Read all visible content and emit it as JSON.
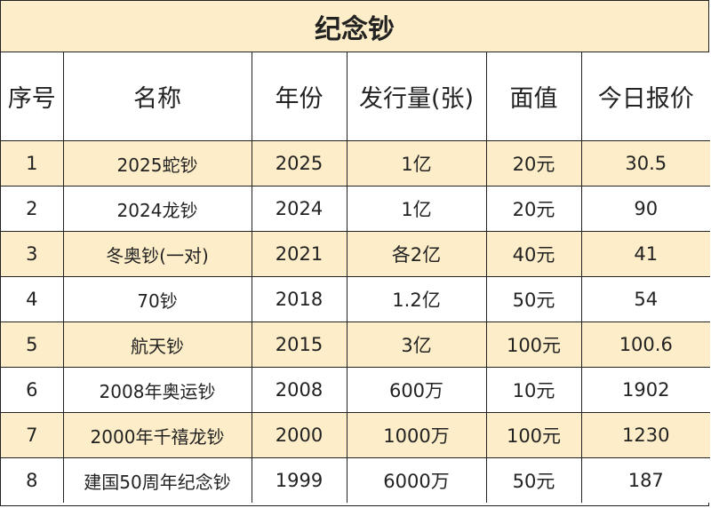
{
  "title": "纪念钞",
  "headers": [
    "序号",
    "名称",
    "年份",
    "发行量(张)",
    "面值",
    "今日报价"
  ],
  "rows": [
    {
      "index": "1",
      "name": "2025蛇钞",
      "year": "2025",
      "quantity": "1亿",
      "face": "20元",
      "price": "30.5"
    },
    {
      "index": "2",
      "name": "2024龙钞",
      "year": "2024",
      "quantity": "1亿",
      "face": "20元",
      "price": "90"
    },
    {
      "index": "3",
      "name": "冬奥钞(一对)",
      "year": "2021",
      "quantity": "各2亿",
      "face": "40元",
      "price": "41"
    },
    {
      "index": "4",
      "name": "70钞",
      "year": "2018",
      "quantity": "1.2亿",
      "face": "50元",
      "price": "54"
    },
    {
      "index": "5",
      "name": "航天钞",
      "year": "2015",
      "quantity": "3亿",
      "face": "100元",
      "price": "100.6"
    },
    {
      "index": "6",
      "name": "2008年奥运钞",
      "year": "2008",
      "quantity": "600万",
      "face": "10元",
      "price": "1902"
    },
    {
      "index": "7",
      "name": "2000年千禧龙钞",
      "year": "2000",
      "quantity": "1000万",
      "face": "100元",
      "price": "1230"
    },
    {
      "index": "8",
      "name": "建国50周年纪念钞",
      "year": "1999",
      "quantity": "6000万",
      "face": "50元",
      "price": "187"
    }
  ],
  "colors": {
    "shaded_row": "#fdedc8",
    "border": "#222222"
  }
}
